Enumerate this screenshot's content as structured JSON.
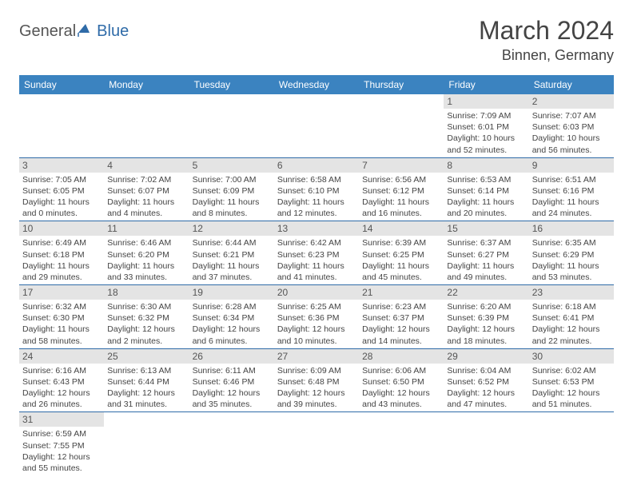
{
  "logo": {
    "general": "General",
    "blue": "Blue"
  },
  "header": {
    "month": "March 2024",
    "location": "Binnen, Germany"
  },
  "colors": {
    "header_bg": "#3b83c0",
    "daynum_bg": "#e4e4e4",
    "border": "#2f6ba8",
    "text": "#444444",
    "logo_blue": "#2f6ba8",
    "logo_gray": "#555555"
  },
  "day_names": [
    "Sunday",
    "Monday",
    "Tuesday",
    "Wednesday",
    "Thursday",
    "Friday",
    "Saturday"
  ],
  "weeks": [
    [
      null,
      null,
      null,
      null,
      null,
      {
        "n": "1",
        "sr": "Sunrise: 7:09 AM",
        "ss": "Sunset: 6:01 PM",
        "dl": "Daylight: 10 hours and 52 minutes."
      },
      {
        "n": "2",
        "sr": "Sunrise: 7:07 AM",
        "ss": "Sunset: 6:03 PM",
        "dl": "Daylight: 10 hours and 56 minutes."
      }
    ],
    [
      {
        "n": "3",
        "sr": "Sunrise: 7:05 AM",
        "ss": "Sunset: 6:05 PM",
        "dl": "Daylight: 11 hours and 0 minutes."
      },
      {
        "n": "4",
        "sr": "Sunrise: 7:02 AM",
        "ss": "Sunset: 6:07 PM",
        "dl": "Daylight: 11 hours and 4 minutes."
      },
      {
        "n": "5",
        "sr": "Sunrise: 7:00 AM",
        "ss": "Sunset: 6:09 PM",
        "dl": "Daylight: 11 hours and 8 minutes."
      },
      {
        "n": "6",
        "sr": "Sunrise: 6:58 AM",
        "ss": "Sunset: 6:10 PM",
        "dl": "Daylight: 11 hours and 12 minutes."
      },
      {
        "n": "7",
        "sr": "Sunrise: 6:56 AM",
        "ss": "Sunset: 6:12 PM",
        "dl": "Daylight: 11 hours and 16 minutes."
      },
      {
        "n": "8",
        "sr": "Sunrise: 6:53 AM",
        "ss": "Sunset: 6:14 PM",
        "dl": "Daylight: 11 hours and 20 minutes."
      },
      {
        "n": "9",
        "sr": "Sunrise: 6:51 AM",
        "ss": "Sunset: 6:16 PM",
        "dl": "Daylight: 11 hours and 24 minutes."
      }
    ],
    [
      {
        "n": "10",
        "sr": "Sunrise: 6:49 AM",
        "ss": "Sunset: 6:18 PM",
        "dl": "Daylight: 11 hours and 29 minutes."
      },
      {
        "n": "11",
        "sr": "Sunrise: 6:46 AM",
        "ss": "Sunset: 6:20 PM",
        "dl": "Daylight: 11 hours and 33 minutes."
      },
      {
        "n": "12",
        "sr": "Sunrise: 6:44 AM",
        "ss": "Sunset: 6:21 PM",
        "dl": "Daylight: 11 hours and 37 minutes."
      },
      {
        "n": "13",
        "sr": "Sunrise: 6:42 AM",
        "ss": "Sunset: 6:23 PM",
        "dl": "Daylight: 11 hours and 41 minutes."
      },
      {
        "n": "14",
        "sr": "Sunrise: 6:39 AM",
        "ss": "Sunset: 6:25 PM",
        "dl": "Daylight: 11 hours and 45 minutes."
      },
      {
        "n": "15",
        "sr": "Sunrise: 6:37 AM",
        "ss": "Sunset: 6:27 PM",
        "dl": "Daylight: 11 hours and 49 minutes."
      },
      {
        "n": "16",
        "sr": "Sunrise: 6:35 AM",
        "ss": "Sunset: 6:29 PM",
        "dl": "Daylight: 11 hours and 53 minutes."
      }
    ],
    [
      {
        "n": "17",
        "sr": "Sunrise: 6:32 AM",
        "ss": "Sunset: 6:30 PM",
        "dl": "Daylight: 11 hours and 58 minutes."
      },
      {
        "n": "18",
        "sr": "Sunrise: 6:30 AM",
        "ss": "Sunset: 6:32 PM",
        "dl": "Daylight: 12 hours and 2 minutes."
      },
      {
        "n": "19",
        "sr": "Sunrise: 6:28 AM",
        "ss": "Sunset: 6:34 PM",
        "dl": "Daylight: 12 hours and 6 minutes."
      },
      {
        "n": "20",
        "sr": "Sunrise: 6:25 AM",
        "ss": "Sunset: 6:36 PM",
        "dl": "Daylight: 12 hours and 10 minutes."
      },
      {
        "n": "21",
        "sr": "Sunrise: 6:23 AM",
        "ss": "Sunset: 6:37 PM",
        "dl": "Daylight: 12 hours and 14 minutes."
      },
      {
        "n": "22",
        "sr": "Sunrise: 6:20 AM",
        "ss": "Sunset: 6:39 PM",
        "dl": "Daylight: 12 hours and 18 minutes."
      },
      {
        "n": "23",
        "sr": "Sunrise: 6:18 AM",
        "ss": "Sunset: 6:41 PM",
        "dl": "Daylight: 12 hours and 22 minutes."
      }
    ],
    [
      {
        "n": "24",
        "sr": "Sunrise: 6:16 AM",
        "ss": "Sunset: 6:43 PM",
        "dl": "Daylight: 12 hours and 26 minutes."
      },
      {
        "n": "25",
        "sr": "Sunrise: 6:13 AM",
        "ss": "Sunset: 6:44 PM",
        "dl": "Daylight: 12 hours and 31 minutes."
      },
      {
        "n": "26",
        "sr": "Sunrise: 6:11 AM",
        "ss": "Sunset: 6:46 PM",
        "dl": "Daylight: 12 hours and 35 minutes."
      },
      {
        "n": "27",
        "sr": "Sunrise: 6:09 AM",
        "ss": "Sunset: 6:48 PM",
        "dl": "Daylight: 12 hours and 39 minutes."
      },
      {
        "n": "28",
        "sr": "Sunrise: 6:06 AM",
        "ss": "Sunset: 6:50 PM",
        "dl": "Daylight: 12 hours and 43 minutes."
      },
      {
        "n": "29",
        "sr": "Sunrise: 6:04 AM",
        "ss": "Sunset: 6:52 PM",
        "dl": "Daylight: 12 hours and 47 minutes."
      },
      {
        "n": "30",
        "sr": "Sunrise: 6:02 AM",
        "ss": "Sunset: 6:53 PM",
        "dl": "Daylight: 12 hours and 51 minutes."
      }
    ],
    [
      {
        "n": "31",
        "sr": "Sunrise: 6:59 AM",
        "ss": "Sunset: 7:55 PM",
        "dl": "Daylight: 12 hours and 55 minutes."
      },
      null,
      null,
      null,
      null,
      null,
      null
    ]
  ]
}
